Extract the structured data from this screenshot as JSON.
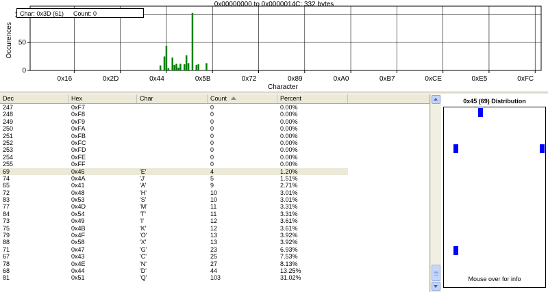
{
  "chart": {
    "title": "0x00000000 to 0x0000014C: 332 bytes",
    "hover": {
      "char": "Char: 0x3D (61)",
      "count": "Count: 0"
    },
    "chart_data": {
      "type": "bar",
      "xlabel": "Character",
      "ylabel": "Occurences",
      "ylim": [
        0,
        115
      ],
      "xlim": [
        0,
        255
      ],
      "yticks": [
        0,
        50,
        100
      ],
      "xticks": [
        {
          "label": "0x16",
          "value": 22
        },
        {
          "label": "0x2D",
          "value": 45
        },
        {
          "label": "0x44",
          "value": 68
        },
        {
          "label": "0x5B",
          "value": 91
        },
        {
          "label": "0x72",
          "value": 114
        },
        {
          "label": "0x89",
          "value": 137
        },
        {
          "label": "0xA0",
          "value": 160
        },
        {
          "label": "0xB7",
          "value": 183
        },
        {
          "label": "0xCE",
          "value": 206
        },
        {
          "label": "0xE5",
          "value": 229
        },
        {
          "label": "0xFC",
          "value": 252
        }
      ],
      "grid": true,
      "bar_color": "#008000",
      "points": [
        {
          "x": 65,
          "y": 9
        },
        {
          "x": 67,
          "y": 25
        },
        {
          "x": 68,
          "y": 44
        },
        {
          "x": 69,
          "y": 4
        },
        {
          "x": 71,
          "y": 23
        },
        {
          "x": 72,
          "y": 10
        },
        {
          "x": 73,
          "y": 12
        },
        {
          "x": 74,
          "y": 5
        },
        {
          "x": 75,
          "y": 12
        },
        {
          "x": 77,
          "y": 11
        },
        {
          "x": 78,
          "y": 27
        },
        {
          "x": 79,
          "y": 13
        },
        {
          "x": 81,
          "y": 103
        },
        {
          "x": 83,
          "y": 10
        },
        {
          "x": 84,
          "y": 11
        },
        {
          "x": 88,
          "y": 13
        }
      ]
    }
  },
  "table": {
    "columns": {
      "dec": "Dec",
      "hex": "Hex",
      "char": "Char",
      "count": "Count",
      "pct": "Percent"
    },
    "rows": [
      {
        "dec": "247",
        "hex": "0xF7",
        "char": "",
        "count": "0",
        "pct": "0.00%"
      },
      {
        "dec": "248",
        "hex": "0xF8",
        "char": "",
        "count": "0",
        "pct": "0.00%"
      },
      {
        "dec": "249",
        "hex": "0xF9",
        "char": "",
        "count": "0",
        "pct": "0.00%"
      },
      {
        "dec": "250",
        "hex": "0xFA",
        "char": "",
        "count": "0",
        "pct": "0.00%"
      },
      {
        "dec": "251",
        "hex": "0xFB",
        "char": "",
        "count": "0",
        "pct": "0.00%"
      },
      {
        "dec": "252",
        "hex": "0xFC",
        "char": "",
        "count": "0",
        "pct": "0.00%"
      },
      {
        "dec": "253",
        "hex": "0xFD",
        "char": "",
        "count": "0",
        "pct": "0.00%"
      },
      {
        "dec": "254",
        "hex": "0xFE",
        "char": "",
        "count": "0",
        "pct": "0.00%"
      },
      {
        "dec": "255",
        "hex": "0xFF",
        "char": "",
        "count": "0",
        "pct": "0.00%"
      },
      {
        "dec": "69",
        "hex": "0x45",
        "char": "'E'",
        "count": "4",
        "pct": "1.20%",
        "selected": true
      },
      {
        "dec": "74",
        "hex": "0x4A",
        "char": "'J'",
        "count": "5",
        "pct": "1.51%"
      },
      {
        "dec": "65",
        "hex": "0x41",
        "char": "'A'",
        "count": "9",
        "pct": "2.71%"
      },
      {
        "dec": "72",
        "hex": "0x48",
        "char": "'H'",
        "count": "10",
        "pct": "3.01%"
      },
      {
        "dec": "83",
        "hex": "0x53",
        "char": "'S'",
        "count": "10",
        "pct": "3.01%"
      },
      {
        "dec": "77",
        "hex": "0x4D",
        "char": "'M'",
        "count": "11",
        "pct": "3.31%"
      },
      {
        "dec": "84",
        "hex": "0x54",
        "char": "'T'",
        "count": "11",
        "pct": "3.31%"
      },
      {
        "dec": "73",
        "hex": "0x49",
        "char": "'I'",
        "count": "12",
        "pct": "3.61%"
      },
      {
        "dec": "75",
        "hex": "0x4B",
        "char": "'K'",
        "count": "12",
        "pct": "3.61%"
      },
      {
        "dec": "79",
        "hex": "0x4F",
        "char": "'O'",
        "count": "13",
        "pct": "3.92%"
      },
      {
        "dec": "88",
        "hex": "0x58",
        "char": "'X'",
        "count": "13",
        "pct": "3.92%"
      },
      {
        "dec": "71",
        "hex": "0x47",
        "char": "'G'",
        "count": "23",
        "pct": "6.93%"
      },
      {
        "dec": "67",
        "hex": "0x43",
        "char": "'C'",
        "count": "25",
        "pct": "7.53%"
      },
      {
        "dec": "78",
        "hex": "0x4E",
        "char": "'N'",
        "count": "27",
        "pct": "8.13%"
      },
      {
        "dec": "68",
        "hex": "0x44",
        "char": "'D'",
        "count": "44",
        "pct": "13.25%"
      },
      {
        "dec": "81",
        "hex": "0x51",
        "char": "'Q'",
        "count": "103",
        "pct": "31.02%"
      }
    ]
  },
  "distribution": {
    "title": "0x45 (69) Distribution",
    "footer": "Mouse over for info",
    "mark_color": "#0000ff"
  }
}
